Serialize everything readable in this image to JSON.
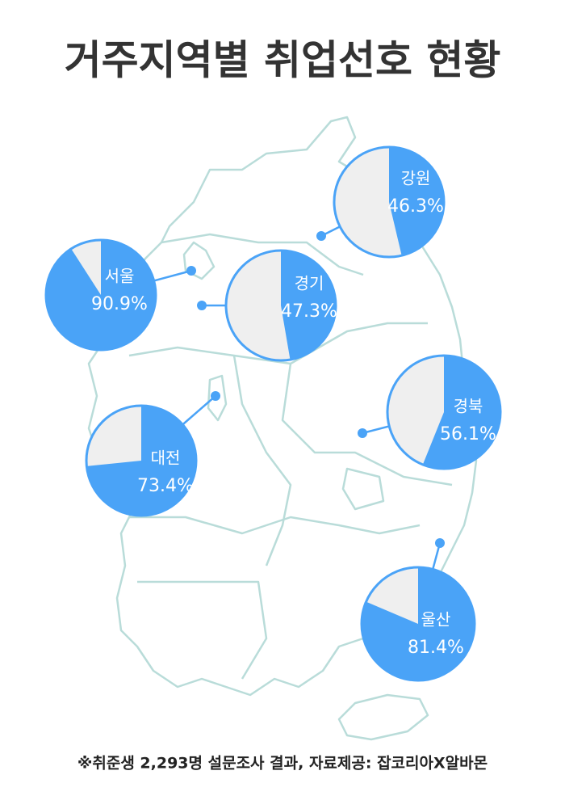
{
  "title": "거주지역별 취업선호 현황",
  "chart_data": [
    {
      "type": "pie",
      "title": "서울",
      "values": [
        90.9
      ],
      "value_labels": [
        "90.9%"
      ],
      "color": "#4aa3f7",
      "rest_color": "#efefef"
    },
    {
      "type": "pie",
      "title": "경기",
      "values": [
        47.3
      ],
      "value_labels": [
        "47.3%"
      ],
      "color": "#4aa3f7",
      "rest_color": "#efefef"
    },
    {
      "type": "pie",
      "title": "강원",
      "values": [
        46.3
      ],
      "value_labels": [
        "46.3%"
      ],
      "color": "#4aa3f7",
      "rest_color": "#efefef"
    },
    {
      "type": "pie",
      "title": "경북",
      "values": [
        56.1
      ],
      "value_labels": [
        "56.1%"
      ],
      "color": "#4aa3f7",
      "rest_color": "#efefef"
    },
    {
      "type": "pie",
      "title": "대전",
      "values": [
        73.4
      ],
      "value_labels": [
        "73.4%"
      ],
      "color": "#4aa3f7",
      "rest_color": "#efefef"
    },
    {
      "type": "pie",
      "title": "울산",
      "values": [
        81.4
      ],
      "value_labels": [
        "81.4%"
      ],
      "color": "#4aa3f7",
      "rest_color": "#efefef"
    }
  ],
  "note": "※취준생 2,293명 설문조사 결과,  자료제공: 잡코리아X알바몬"
}
